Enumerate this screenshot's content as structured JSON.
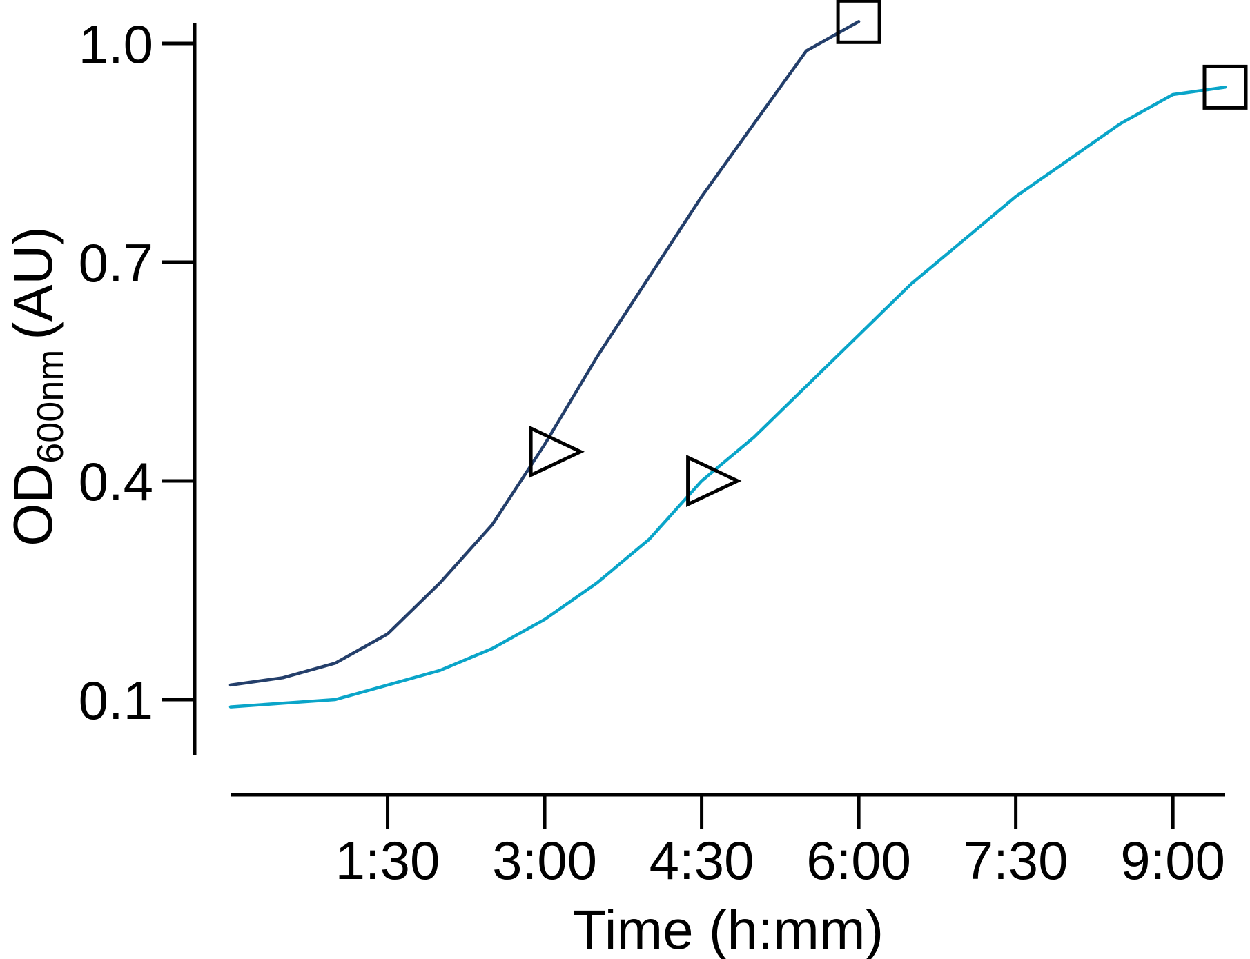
{
  "chart_data": {
    "type": "line",
    "xlabel": "Time (h:mm)",
    "ylabel": {
      "main": "OD",
      "sub": "600nm",
      "unit": "(AU)"
    },
    "xlim": [
      0,
      570
    ],
    "ylim": [
      0.1,
      1.0
    ],
    "x_ticks": [
      {
        "value": 90,
        "label": "1:30"
      },
      {
        "value": 180,
        "label": "3:00"
      },
      {
        "value": 270,
        "label": "4:30"
      },
      {
        "value": 360,
        "label": "6:00"
      },
      {
        "value": 450,
        "label": "7:30"
      },
      {
        "value": 540,
        "label": "9:00"
      }
    ],
    "y_ticks": [
      {
        "value": 0.1,
        "label": "0.1"
      },
      {
        "value": 0.4,
        "label": "0.4"
      },
      {
        "value": 0.7,
        "label": "0.7"
      },
      {
        "value": 1.0,
        "label": "1.0"
      }
    ],
    "grid": false,
    "series": [
      {
        "color": "#243f6b",
        "x": [
          0,
          30,
          60,
          90,
          120,
          150,
          180,
          210,
          240,
          270,
          300,
          330,
          360
        ],
        "y": [
          0.12,
          0.13,
          0.15,
          0.19,
          0.26,
          0.34,
          0.45,
          0.57,
          0.68,
          0.79,
          0.89,
          0.99,
          1.03
        ],
        "markers": [
          {
            "shape": "triangle-right",
            "x": 180,
            "y": 0.44
          },
          {
            "shape": "square",
            "x": 360,
            "y": 1.03
          }
        ]
      },
      {
        "color": "#0aa5c9",
        "x": [
          0,
          30,
          60,
          90,
          120,
          150,
          180,
          210,
          240,
          270,
          300,
          330,
          360,
          390,
          420,
          450,
          480,
          510,
          540,
          570
        ],
        "y": [
          0.09,
          0.095,
          0.1,
          0.12,
          0.14,
          0.17,
          0.21,
          0.26,
          0.32,
          0.4,
          0.46,
          0.53,
          0.6,
          0.67,
          0.73,
          0.79,
          0.84,
          0.89,
          0.93,
          0.94
        ],
        "markers": [
          {
            "shape": "triangle-right",
            "x": 270,
            "y": 0.4
          },
          {
            "shape": "square",
            "x": 570,
            "y": 0.94
          }
        ]
      }
    ]
  }
}
